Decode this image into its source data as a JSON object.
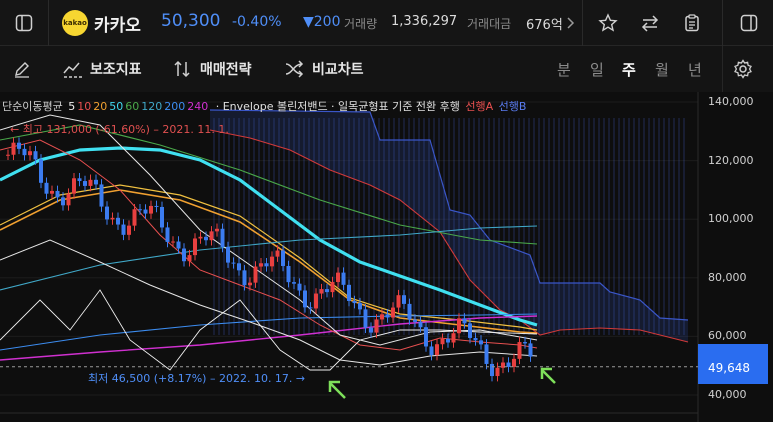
{
  "header": {
    "logo_text": "kakao",
    "stock_name": "카카오",
    "price": "50,300",
    "change_pct": "-0.40%",
    "change_value": "▼200",
    "volume_label": "거래량",
    "volume_value": "1,336,297",
    "amount_label": "거래대금",
    "amount_value": "676억"
  },
  "toolbar": {
    "indicators": "보조지표",
    "strategy": "매매전략",
    "compare": "비교차트",
    "periods": [
      "분",
      "일",
      "주",
      "월",
      "년"
    ],
    "active_period": "주"
  },
  "legend": {
    "ma_prefix": "단순이동평균",
    "ma": [
      {
        "label": "5",
        "color": "#f0f0f0"
      },
      {
        "label": "10",
        "color": "#e85050"
      },
      {
        "label": "20",
        "color": "#f0a030"
      },
      {
        "label": "50",
        "color": "#40d8f0"
      },
      {
        "label": "60",
        "color": "#4aa84a"
      },
      {
        "label": "120",
        "color": "#40a8c8"
      },
      {
        "label": "200",
        "color": "#3c8cf0"
      },
      {
        "label": "240",
        "color": "#d030d0"
      }
    ],
    "rest": "· Envelope 볼린저밴드 · 일목균형표 기준 전환 후행",
    "span_a": "선행A",
    "span_b": "선행B"
  },
  "annotations": {
    "high": "← 최고 131,000 (-61.60%) – 2021. 11. 1.",
    "low": "최저 46,500 (+8.17%) – 2022. 10. 17. →"
  },
  "y_axis": {
    "labels": [
      "140,000",
      "120,000",
      "100,000",
      "80,000",
      "60,000",
      "40,000"
    ],
    "values": [
      140000,
      120000,
      100000,
      80000,
      60000,
      40000
    ],
    "current_price_label": "49,648",
    "current_price_value": 49648
  },
  "colors": {
    "up": "#e84040",
    "down": "#3c7cf0",
    "ma50": "#40e0f0",
    "cloud": "#3a56c8",
    "background": "#0e0e0e"
  }
}
